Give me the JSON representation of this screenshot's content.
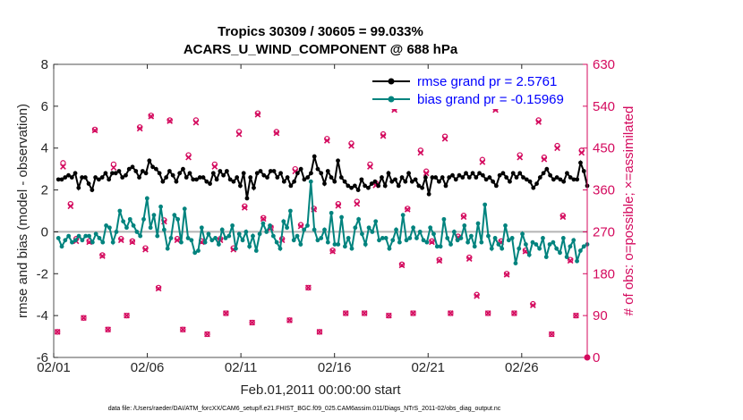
{
  "titles": {
    "line1": "Tropics 30309 / 30605 = 99.033%",
    "line2": "ACARS_U_WIND_COMPONENT @ 688 hPa"
  },
  "footer": "data file: /Users/raeder/DAI/ATM_forcXX/CAM6_setup/f.e21.FHIST_BGC.f09_025.CAM6assim.011/Diags_NTrS_2011-02/obs_diag_output.nc",
  "colors": {
    "rmse": "#000000",
    "bias": "#00837e",
    "obs": "#d40a5e",
    "zero_line": "#b4b4b4",
    "legend_text": "#0000ff"
  },
  "chart_data": {
    "type": "line",
    "title": "Tropics 30309 / 30605 = 99.033%",
    "subtitle": "ACARS_U_WIND_COMPONENT @ 688 hPa",
    "xlabel": "Feb.01,2011 00:00:00 start",
    "ylabel": "rmse and bias (model - observation)",
    "y2label": "# of obs: o=possible; ×=assimilated",
    "xlim": [
      1,
      29.5
    ],
    "ylim": [
      -6,
      8
    ],
    "y2lim": [
      0,
      630
    ],
    "xticks": [
      1,
      6,
      11,
      16,
      21,
      26
    ],
    "xtick_labels": [
      "02/01",
      "02/06",
      "02/11",
      "02/16",
      "02/21",
      "02/26"
    ],
    "yticks": [
      -6,
      -4,
      -2,
      0,
      2,
      4,
      6,
      8
    ],
    "y2ticks": [
      0,
      90,
      180,
      270,
      360,
      450,
      540,
      630
    ],
    "grid": false,
    "legend_position": "top-right",
    "series": [
      {
        "name": "rmse grand pr = 2.5761",
        "axis": "left",
        "values": [
          2.5,
          2.5,
          2.6,
          2.7,
          2.6,
          2.8,
          2.1,
          2.6,
          2.6,
          2.3,
          2.0,
          2.6,
          2.5,
          2.6,
          2.8,
          2.5,
          2.8,
          2.8,
          2.9,
          2.6,
          2.7,
          3.0,
          3.1,
          2.9,
          2.6,
          2.9,
          2.8,
          3.4,
          3.1,
          3.0,
          2.8,
          2.4,
          2.6,
          2.9,
          2.7,
          2.4,
          2.8,
          3.0,
          2.6,
          2.8,
          2.5,
          2.5,
          2.6,
          2.6,
          2.4,
          2.3,
          2.8,
          2.5,
          2.9,
          2.7,
          2.9,
          2.5,
          2.4,
          2.6,
          2.2,
          2.8,
          1.6,
          2.6,
          2.1,
          2.8,
          2.9,
          2.7,
          2.6,
          2.9,
          2.9,
          2.6,
          2.8,
          2.4,
          2.6,
          2.2,
          2.4,
          2.8,
          3.0,
          2.5,
          2.6,
          2.8,
          3.6,
          3.0,
          2.8,
          2.3,
          2.9,
          2.6,
          2.4,
          3.4,
          2.6,
          2.4,
          2.2,
          2.1,
          2.2,
          2.0,
          2.5,
          2.2,
          2.1,
          2.3,
          2.4,
          2.2,
          2.6,
          2.2,
          2.8,
          2.4,
          2.5,
          2.2,
          2.6,
          2.4,
          2.8,
          2.4,
          2.5,
          2.2,
          2.1,
          2.6,
          1.8,
          2.6,
          2.6,
          2.4,
          2.6,
          2.2,
          2.6,
          2.7,
          2.5,
          2.7,
          2.6,
          2.8,
          2.6,
          2.8,
          2.6,
          2.8,
          2.7,
          2.5,
          2.6,
          2.4,
          2.2,
          2.7,
          2.8,
          2.6,
          2.4,
          2.8,
          2.6,
          2.8,
          2.6,
          2.5,
          2.4,
          2.1,
          2.3,
          2.6,
          2.8,
          3.0,
          2.7,
          2.5,
          2.6,
          2.5,
          2.4,
          2.8,
          2.6,
          2.5,
          2.5,
          3.3,
          2.9,
          2.2
        ]
      },
      {
        "name": "bias grand pr = -0.15969",
        "axis": "left",
        "values": [
          -0.3,
          -0.7,
          -0.4,
          -0.2,
          -0.5,
          -0.4,
          -0.2,
          -0.4,
          -0.2,
          -0.2,
          -0.5,
          -0.1,
          -0.3,
          -0.5,
          0.3,
          0.2,
          -0.5,
          0.0,
          1.0,
          0.5,
          0.2,
          0.6,
          0.3,
          0.0,
          -0.2,
          0.6,
          1.6,
          0.2,
          0.8,
          -0.2,
          1.2,
          0.1,
          -0.8,
          -0.3,
          0.8,
          0.6,
          -0.5,
          1.1,
          -0.3,
          -0.4,
          -1.0,
          -0.9,
          0.2,
          -0.5,
          -0.1,
          -0.4,
          -0.3,
          -0.6,
          0.1,
          -0.3,
          -0.2,
          0.3,
          -0.8,
          -0.1,
          -0.4,
          0.0,
          -0.7,
          -0.2,
          -0.9,
          -0.1,
          0.4,
          0.0,
          0.3,
          -0.2,
          -0.5,
          -0.8,
          0.5,
          0.2,
          1.0,
          -0.4,
          -0.2,
          -0.6,
          0.1,
          0.3,
          2.4,
          0.1,
          -0.4,
          -0.3,
          0.1,
          -0.5,
          0.9,
          -0.6,
          -0.6,
          0.7,
          -0.7,
          -0.3,
          -0.8,
          0.2,
          0.6,
          -0.1,
          -0.6,
          0.2,
          0.0,
          0.5,
          -0.4,
          -0.3,
          -0.3,
          -0.8,
          -0.4,
          0.1,
          -0.5,
          0.8,
          -0.4,
          -0.3,
          0.2,
          -0.3,
          0.0,
          -0.4,
          -0.5,
          0.2,
          -0.1,
          -0.7,
          -0.7,
          0.6,
          -0.3,
          -0.6,
          0.0,
          -0.4,
          -0.3,
          0.3,
          -0.5,
          -0.2,
          -0.7,
          0.4,
          -0.5,
          1.3,
          -0.2,
          -0.8,
          -0.3,
          -0.6,
          -0.8,
          0.3,
          -0.4,
          -0.3,
          -1.5,
          -0.8,
          -0.1,
          -0.6,
          -1.1,
          -0.5,
          -0.6,
          -0.8,
          -0.3,
          -1.2,
          -0.6,
          -0.5,
          -0.8,
          -1.0,
          -0.3,
          -1.2,
          -0.7,
          -0.4,
          -1.4,
          -0.9,
          -0.7,
          -0.6
        ]
      }
    ],
    "obs_possible": {
      "axis": "right",
      "name": "o=possible",
      "x": [
        1.2,
        1.5,
        1.9,
        2.2,
        2.6,
        2.9,
        3.2,
        3.6,
        3.9,
        4.2,
        4.6,
        4.9,
        5.2,
        5.6,
        5.9,
        6.2,
        6.6,
        6.9,
        7.2,
        7.6,
        7.9,
        8.2,
        8.6,
        8.9,
        9.2,
        9.6,
        9.9,
        10.2,
        10.6,
        10.9,
        11.2,
        11.6,
        11.9,
        12.2,
        12.6,
        12.9,
        13.2,
        13.6,
        13.9,
        14.2,
        14.6,
        14.9,
        15.2,
        15.6,
        15.9,
        16.2,
        16.6,
        16.9,
        17.2,
        17.6,
        17.9,
        18.2,
        18.6,
        18.9,
        19.2,
        19.6,
        19.9,
        20.2,
        20.6,
        20.9,
        21.2,
        21.6,
        21.9,
        22.2,
        22.6,
        22.9,
        23.2,
        23.6,
        23.9,
        24.2,
        24.6,
        24.9,
        25.2,
        25.6,
        25.9,
        26.2,
        26.6,
        26.9,
        27.2,
        27.6,
        27.9,
        28.2,
        28.6,
        28.9,
        29.2
      ],
      "values": [
        55,
        418,
        330,
        255,
        85,
        250,
        490,
        220,
        60,
        415,
        255,
        90,
        250,
        495,
        235,
        520,
        150,
        295,
        510,
        255,
        60,
        435,
        510,
        250,
        50,
        415,
        255,
        95,
        235,
        485,
        325,
        75,
        525,
        300,
        280,
        485,
        255,
        80,
        405,
        285,
        150,
        320,
        55,
        470,
        230,
        330,
        95,
        460,
        335,
        95,
        415,
        375,
        480,
        90,
        535,
        200,
        320,
        95,
        445,
        400,
        250,
        210,
        475,
        95,
        260,
        305,
        215,
        135,
        425,
        95,
        535,
        250,
        180,
        95,
        435,
        230,
        115,
        510,
        430,
        50,
        455,
        305,
        210,
        90,
        445
      ]
    },
    "obs_assimilated": {
      "axis": "right",
      "name": "×=assimilated",
      "x": [
        1.2,
        1.5,
        1.9,
        2.2,
        2.6,
        2.9,
        3.2,
        3.6,
        3.9,
        4.2,
        4.6,
        4.9,
        5.2,
        5.6,
        5.9,
        6.2,
        6.6,
        6.9,
        7.2,
        7.6,
        7.9,
        8.2,
        8.6,
        8.9,
        9.2,
        9.6,
        9.9,
        10.2,
        10.6,
        10.9,
        11.2,
        11.6,
        11.9,
        12.2,
        12.6,
        12.9,
        13.2,
        13.6,
        13.9,
        14.2,
        14.6,
        14.9,
        15.2,
        15.6,
        15.9,
        16.2,
        16.6,
        16.9,
        17.2,
        17.6,
        17.9,
        18.2,
        18.6,
        18.9,
        19.2,
        19.6,
        19.9,
        20.2,
        20.6,
        20.9,
        21.2,
        21.6,
        21.9,
        22.2,
        22.6,
        22.9,
        23.2,
        23.6,
        23.9,
        24.2,
        24.6,
        24.9,
        25.2,
        25.6,
        25.9,
        26.2,
        26.6,
        26.9,
        27.2,
        27.6,
        27.9,
        28.2,
        28.6,
        28.9,
        29.2
      ],
      "values": [
        55,
        410,
        325,
        250,
        85,
        248,
        488,
        218,
        60,
        408,
        252,
        90,
        248,
        492,
        232,
        518,
        148,
        292,
        508,
        252,
        60,
        430,
        505,
        248,
        50,
        410,
        252,
        95,
        232,
        480,
        322,
        75,
        522,
        298,
        278,
        482,
        252,
        80,
        400,
        282,
        150,
        318,
        55,
        466,
        228,
        326,
        95,
        455,
        330,
        95,
        410,
        370,
        476,
        90,
        532,
        198,
        318,
        95,
        440,
        396,
        248,
        208,
        470,
        95,
        258,
        302,
        212,
        132,
        420,
        95,
        532,
        248,
        178,
        95,
        430,
        228,
        112,
        506,
        426,
        50,
        450,
        302,
        208,
        90,
        440
      ]
    }
  }
}
